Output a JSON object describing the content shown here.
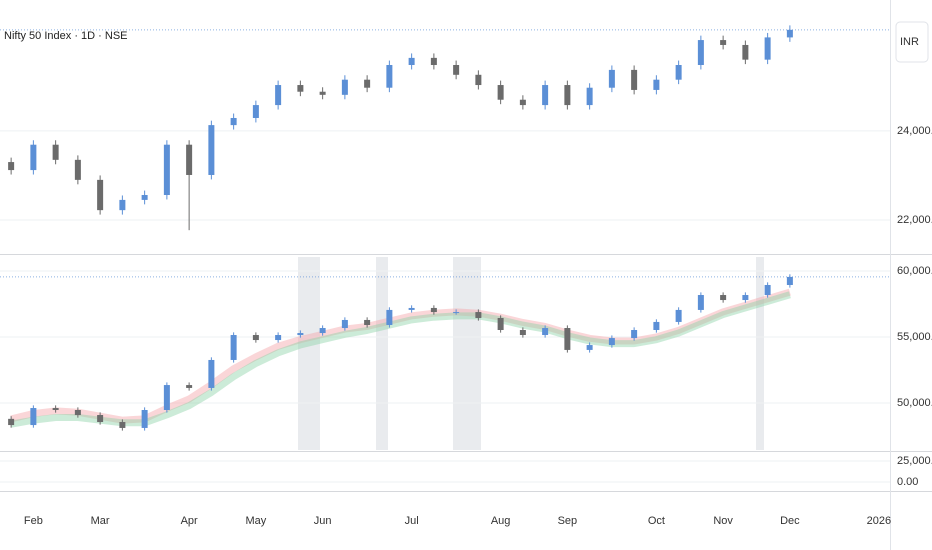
{
  "chart_data": [
    {
      "type": "candlestick",
      "title": "Nifty 50 Index · 1D · NSE",
      "currency": "INR",
      "categories": [
        null,
        "Feb",
        null,
        null,
        "Mar",
        null,
        null,
        null,
        "Apr",
        null,
        null,
        "May",
        null,
        null,
        "Jun",
        null,
        null,
        null,
        "Jul",
        null,
        null,
        null,
        "Aug",
        null,
        null,
        "Sep",
        null,
        null,
        null,
        "Oct",
        null,
        null,
        "Nov",
        null,
        null,
        "Dec",
        null,
        null,
        null,
        "2026"
      ],
      "open": [
        23300,
        23120,
        23690,
        23350,
        22900,
        22220,
        22450,
        22560,
        23690,
        23010,
        24130,
        24290,
        24580,
        25030,
        24880,
        24810,
        25150,
        24970,
        25480,
        25640,
        25480,
        25260,
        25030,
        24700,
        24580,
        25030,
        24580,
        24970,
        25370,
        24920,
        25150,
        25480,
        26040,
        25930,
        25600,
        26100,
        null,
        null,
        null,
        null
      ],
      "high": [
        23400,
        23790,
        23790,
        23450,
        23000,
        22550,
        22660,
        23790,
        23790,
        24230,
        24390,
        24680,
        25130,
        25130,
        24980,
        25250,
        25250,
        25580,
        25740,
        25740,
        25580,
        25360,
        25130,
        24800,
        25130,
        25130,
        25070,
        25470,
        25470,
        25250,
        25580,
        26140,
        26140,
        26030,
        26200,
        26370,
        null,
        null,
        null,
        null
      ],
      "low": [
        23020,
        23020,
        23250,
        22800,
        22120,
        22120,
        22350,
        22460,
        21770,
        22910,
        24030,
        24190,
        24480,
        24780,
        24710,
        24710,
        24870,
        24870,
        25380,
        25380,
        25160,
        24930,
        24600,
        24480,
        24480,
        24480,
        24480,
        24870,
        24820,
        24820,
        25050,
        25380,
        25830,
        25500,
        25500,
        26000,
        null,
        null,
        null,
        null
      ],
      "close": [
        23120,
        23690,
        23350,
        22900,
        22220,
        22450,
        22560,
        23690,
        23010,
        24130,
        24290,
        24580,
        25030,
        24880,
        24810,
        25150,
        24970,
        25480,
        25640,
        25480,
        25260,
        25030,
        24700,
        24580,
        25030,
        24580,
        24970,
        25370,
        24920,
        25150,
        25480,
        26040,
        25930,
        25600,
        26100,
        26270,
        null,
        null,
        null,
        null
      ],
      "up_color": "#5b8fd6",
      "down_color": "#6b6b6b",
      "ylim": [
        26940,
        21280
      ],
      "yticks": [
        {
          "value": 22000,
          "label": "22,000.00"
        },
        {
          "value": 24000,
          "label": "24,000.00"
        }
      ]
    },
    {
      "type": "candlestick",
      "open": [
        48800,
        48330,
        49620,
        49470,
        49090,
        48560,
        48110,
        49470,
        51360,
        51140,
        53260,
        55150,
        54770,
        55150,
        55300,
        55680,
        56290,
        55910,
        57050,
        57200,
        56890,
        56890,
        56440,
        55530,
        55150,
        55680,
        54020,
        54390,
        54920,
        55530,
        56140,
        57050,
        58180,
        57800,
        58180,
        58940,
        null,
        null,
        null,
        null
      ],
      "high": [
        49000,
        49820,
        49820,
        49670,
        49290,
        48760,
        49670,
        51560,
        51560,
        53460,
        55350,
        55350,
        55350,
        55500,
        55880,
        56490,
        56490,
        57250,
        57400,
        57400,
        57090,
        57090,
        56640,
        55730,
        55880,
        55880,
        54590,
        55120,
        55730,
        56340,
        57250,
        58380,
        58380,
        58380,
        59140,
        59750,
        null,
        null,
        null,
        null
      ],
      "low": [
        48130,
        48130,
        49270,
        48890,
        48360,
        47910,
        47910,
        49270,
        50940,
        50940,
        53060,
        54570,
        54570,
        54950,
        55100,
        55480,
        55710,
        55710,
        56850,
        56690,
        56690,
        56240,
        55330,
        54950,
        54950,
        53820,
        53820,
        54190,
        54720,
        55330,
        55940,
        56850,
        57600,
        57600,
        57980,
        58740,
        null,
        null,
        null,
        null
      ],
      "close": [
        48330,
        49620,
        49470,
        49090,
        48560,
        48110,
        49470,
        51360,
        51140,
        53260,
        55150,
        54770,
        55150,
        55300,
        55680,
        56290,
        55910,
        57050,
        57200,
        56890,
        56890,
        56440,
        55530,
        55150,
        55680,
        54020,
        54390,
        54920,
        55530,
        56140,
        57050,
        58180,
        57800,
        58180,
        58940,
        59550,
        null,
        null,
        null,
        null
      ],
      "up_color": "#5b8fd6",
      "down_color": "#6b6b6b",
      "bands": [
        {
          "color": "#f4a3a8",
          "values": [
            48800,
            49200,
            49400,
            49300,
            49000,
            48700,
            48800,
            49600,
            50300,
            51400,
            52600,
            53500,
            54300,
            54800,
            55200,
            55600,
            55800,
            56200,
            56600,
            56800,
            56900,
            56800,
            56500,
            56100,
            55800,
            55300,
            54900,
            54700,
            54700,
            55000,
            55500,
            56200,
            56900,
            57400,
            57900,
            58400,
            null,
            null,
            null,
            null
          ]
        },
        {
          "color": "#8fd3a8",
          "values": [
            48400,
            48700,
            48900,
            48900,
            48700,
            48500,
            48500,
            49100,
            49800,
            50800,
            52000,
            53000,
            53800,
            54400,
            54800,
            55200,
            55500,
            55900,
            56300,
            56500,
            56600,
            56600,
            56300,
            55900,
            55600,
            55100,
            54700,
            54500,
            54500,
            54800,
            55300,
            56000,
            56700,
            57200,
            57700,
            58200,
            null,
            null,
            null,
            null
          ]
        }
      ],
      "ylim": [
        61060,
        46440
      ],
      "yticks": [
        {
          "value": 50000,
          "label": "50,000.00"
        },
        {
          "value": 55000,
          "label": "55,000.00"
        },
        {
          "value": 60000,
          "label": "60,000.00"
        }
      ]
    },
    {
      "type": "indicator",
      "ylim": [
        34520,
        -9520
      ],
      "yticks": [
        {
          "value": 0,
          "label": "0.00"
        },
        {
          "value": 25000,
          "label": "25,000.00"
        }
      ]
    }
  ]
}
